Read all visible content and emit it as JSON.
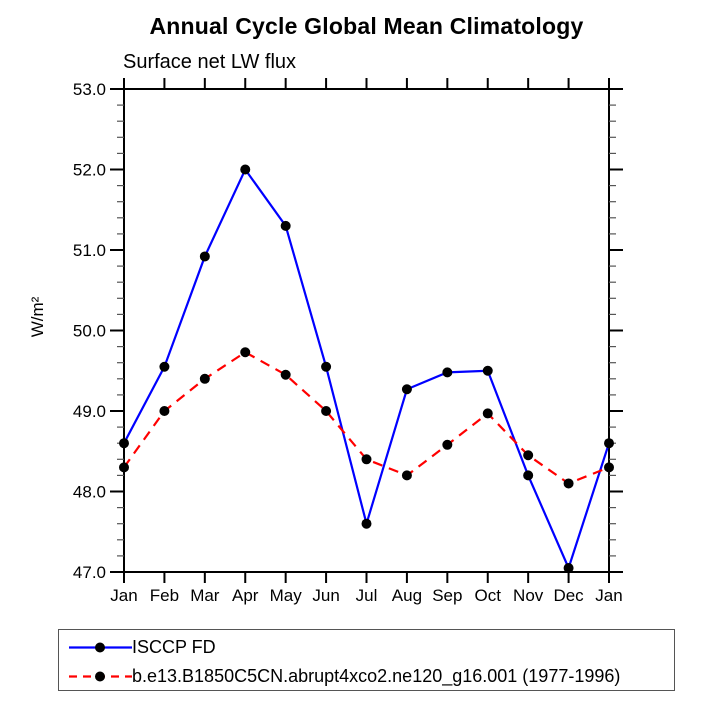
{
  "page": {
    "background": "#ffffff"
  },
  "chart_data": {
    "type": "line",
    "title": "Annual Cycle Global Mean Climatology",
    "subtitle": "Surface net LW flux",
    "ylabel": "W/m²",
    "xlabel": "",
    "categories": [
      "Jan",
      "Feb",
      "Mar",
      "Apr",
      "May",
      "Jun",
      "Jul",
      "Aug",
      "Sep",
      "Oct",
      "Nov",
      "Dec",
      "Jan"
    ],
    "series": [
      {
        "name": "ISCCP FD",
        "color": "#0000ff",
        "line_style": "solid",
        "marker": "filled-circle",
        "marker_color": "#000000",
        "values": [
          48.6,
          49.55,
          50.92,
          52.0,
          51.3,
          49.55,
          47.6,
          49.27,
          49.48,
          49.5,
          48.2,
          47.05,
          48.6
        ]
      },
      {
        "name": "b.e13.B1850C5CN.abrupt4xco2.ne120_g16.001 (1977-1996)",
        "color": "#ff0000",
        "line_style": "dashed",
        "marker": "filled-circle",
        "marker_color": "#000000",
        "values": [
          48.3,
          49.0,
          49.4,
          49.73,
          49.45,
          49.0,
          48.4,
          48.2,
          48.58,
          48.97,
          48.45,
          48.1,
          48.3
        ]
      }
    ],
    "ylim": [
      47.0,
      53.0
    ],
    "ytick_interval_major": 1.0,
    "ytick_interval_minor": 0.2,
    "ytick_labels": [
      "53.0",
      "52.0",
      "51.0",
      "50.0",
      "49.0",
      "48.0",
      "47.0"
    ],
    "grid": false,
    "legend_position": "bottom-left",
    "axis_color": "#000000"
  }
}
